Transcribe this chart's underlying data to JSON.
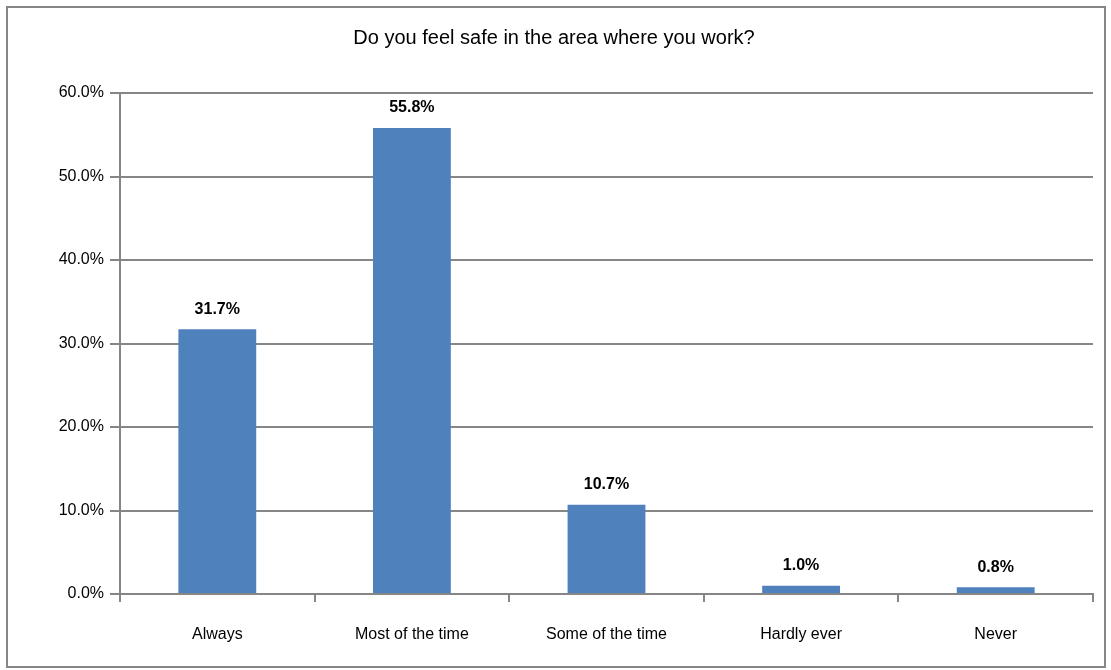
{
  "chart_data": {
    "type": "bar",
    "title": "Do you feel safe in the area where you work?",
    "categories": [
      "Always",
      "Most of the time",
      "Some of the time",
      "Hardly ever",
      "Never"
    ],
    "values": [
      31.7,
      55.8,
      10.7,
      1.0,
      0.8
    ],
    "color": "#4f81bd",
    "value_labels": [
      "31.7%",
      "55.8%",
      "10.7%",
      "1.0%",
      "0.8%"
    ],
    "ylim": [
      0,
      60
    ],
    "yticks": [
      {
        "value": 0,
        "label": "0.0%"
      },
      {
        "value": 10,
        "label": "10.0%"
      },
      {
        "value": 20,
        "label": "20.0%"
      },
      {
        "value": 30,
        "label": "30.0%"
      },
      {
        "value": 40,
        "label": "40.0%"
      },
      {
        "value": 50,
        "label": "50.0%"
      },
      {
        "value": 60,
        "label": "60.0%"
      }
    ],
    "grid": "y"
  }
}
